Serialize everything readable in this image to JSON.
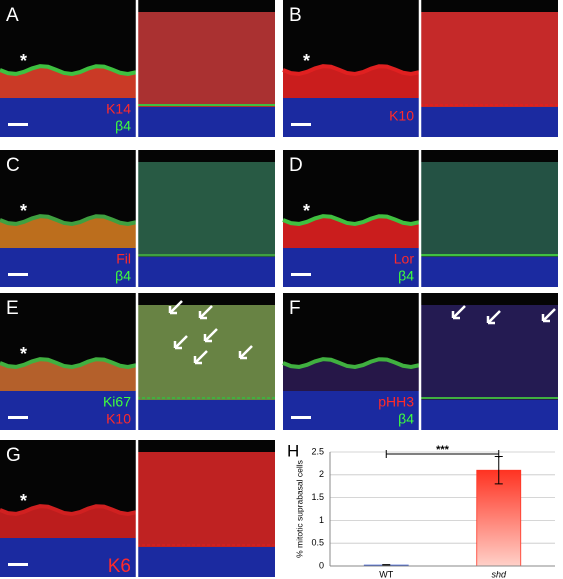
{
  "panels": [
    {
      "letter": "A",
      "annotation": "*",
      "stains": [
        {
          "text": "K14",
          "color": "#ff2a2a"
        },
        {
          "text": "β4",
          "color": "#3dff3d"
        }
      ]
    },
    {
      "letter": "B",
      "annotation": "*",
      "stains": [
        {
          "text": "K10",
          "color": "#ff2a2a"
        }
      ]
    },
    {
      "letter": "C",
      "annotation": "*",
      "stains": [
        {
          "text": "Fil",
          "color": "#ff2a2a"
        },
        {
          "text": "β4",
          "color": "#3dff3d"
        }
      ]
    },
    {
      "letter": "D",
      "annotation": "*",
      "stains": [
        {
          "text": "Lor",
          "color": "#ff2a2a"
        },
        {
          "text": "β4",
          "color": "#3dff3d"
        }
      ]
    },
    {
      "letter": "E",
      "annotation": "*",
      "stains": [
        {
          "text": "Ki67",
          "color": "#3dff3d"
        },
        {
          "text": "K10",
          "color": "#ff2a2a"
        }
      ]
    },
    {
      "letter": "F",
      "stains": [
        {
          "text": "pHH3",
          "color": "#ff2a2a"
        },
        {
          "text": "β4",
          "color": "#3dff3d"
        }
      ]
    },
    {
      "letter": "G",
      "annotation": "*",
      "stains": [
        {
          "text": "K6",
          "color": "#ff2a2a"
        }
      ]
    }
  ],
  "chart_data": {
    "type": "bar",
    "letter": "H",
    "ylabel": "% mitotic suprabasal cells",
    "categories": [
      "WT",
      "shd"
    ],
    "values": [
      0.02,
      2.1
    ],
    "errors": [
      0.01,
      0.3
    ],
    "colors": [
      "#3355cc",
      "#ff3322"
    ],
    "ylim": [
      0,
      2.5
    ],
    "yticks": [
      0,
      0.5,
      1,
      1.5,
      2,
      2.5
    ],
    "grid": true,
    "significance": "***"
  }
}
